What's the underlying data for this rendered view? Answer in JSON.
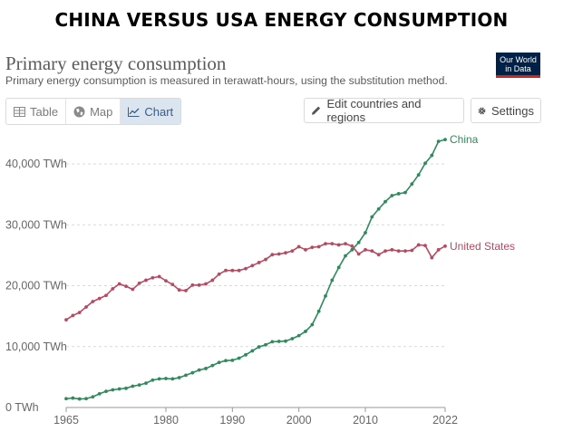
{
  "banner": {
    "title": "CHINA VERSUS USA ENERGY CONSUMPTION"
  },
  "owid": {
    "logo": "Our World in Data",
    "title": "Primary energy consumption",
    "subtitle": "Primary energy consumption is measured in terawatt-hours, using the substitution method."
  },
  "tabs": [
    {
      "label": "Table",
      "icon": "table-icon"
    },
    {
      "label": "Map",
      "icon": "globe-icon"
    },
    {
      "label": "Chart",
      "icon": "line-chart-icon",
      "active": true
    }
  ],
  "toolbar": {
    "edit_label": "Edit countries and regions",
    "settings_label": "Settings"
  },
  "colors": {
    "china": "#2f8a5d",
    "usa": "#b54b63",
    "grid": "#d9d9d9"
  },
  "chart_data": {
    "type": "line",
    "xlim": [
      1965,
      2022
    ],
    "ylim": [
      0,
      45000
    ],
    "yticks": [
      {
        "value": 0,
        "label": "0 TWh"
      },
      {
        "value": 10000,
        "label": "10,000 TWh"
      },
      {
        "value": 20000,
        "label": "20,000 TWh"
      },
      {
        "value": 30000,
        "label": "30,000 TWh"
      },
      {
        "value": 40000,
        "label": "40,000 TWh"
      }
    ],
    "xticks": [
      1965,
      1980,
      1990,
      2000,
      2010,
      2022
    ],
    "series": [
      {
        "name": "China",
        "x": [
          1965,
          1966,
          1967,
          1968,
          1969,
          1970,
          1971,
          1972,
          1973,
          1974,
          1975,
          1976,
          1977,
          1978,
          1979,
          1980,
          1981,
          1982,
          1983,
          1984,
          1985,
          1986,
          1987,
          1988,
          1989,
          1990,
          1991,
          1992,
          1993,
          1994,
          1995,
          1996,
          1997,
          1998,
          1999,
          2000,
          2001,
          2002,
          2003,
          2004,
          2005,
          2006,
          2007,
          2008,
          2009,
          2010,
          2011,
          2012,
          2013,
          2014,
          2015,
          2016,
          2017,
          2018,
          2019,
          2020,
          2021,
          2022
        ],
        "values": [
          1450,
          1550,
          1400,
          1450,
          1750,
          2250,
          2650,
          2900,
          3050,
          3150,
          3500,
          3700,
          4000,
          4500,
          4700,
          4750,
          4700,
          4900,
          5300,
          5700,
          6150,
          6400,
          6900,
          7400,
          7700,
          7750,
          8100,
          8650,
          9300,
          9950,
          10300,
          10800,
          10850,
          10900,
          11300,
          11800,
          12500,
          13600,
          15800,
          18300,
          20900,
          23000,
          24900,
          25900,
          27100,
          28700,
          31300,
          32600,
          33800,
          34800,
          35100,
          35300,
          36700,
          38200,
          40100,
          41400,
          43700,
          44000
        ]
      },
      {
        "name": "United States",
        "x": [
          1965,
          1966,
          1967,
          1968,
          1969,
          1970,
          1971,
          1972,
          1973,
          1974,
          1975,
          1976,
          1977,
          1978,
          1979,
          1980,
          1981,
          1982,
          1983,
          1984,
          1985,
          1986,
          1987,
          1988,
          1989,
          1990,
          1991,
          1992,
          1993,
          1994,
          1995,
          1996,
          1997,
          1998,
          1999,
          2000,
          2001,
          2002,
          2003,
          2004,
          2005,
          2006,
          2007,
          2008,
          2009,
          2010,
          2011,
          2012,
          2013,
          2014,
          2015,
          2016,
          2017,
          2018,
          2019,
          2020,
          2021,
          2022
        ],
        "values": [
          14400,
          15100,
          15600,
          16500,
          17400,
          17900,
          18400,
          19500,
          20300,
          19900,
          19400,
          20400,
          20900,
          21300,
          21500,
          20800,
          20200,
          19300,
          19200,
          20100,
          20100,
          20300,
          20900,
          21900,
          22500,
          22500,
          22500,
          22800,
          23300,
          23800,
          24300,
          25100,
          25200,
          25400,
          25700,
          26400,
          25900,
          26300,
          26400,
          26900,
          26900,
          26700,
          26900,
          26500,
          25200,
          25900,
          25700,
          25100,
          25700,
          25900,
          25700,
          25700,
          25800,
          26700,
          26600,
          24600,
          25900,
          26500
        ]
      }
    ]
  }
}
